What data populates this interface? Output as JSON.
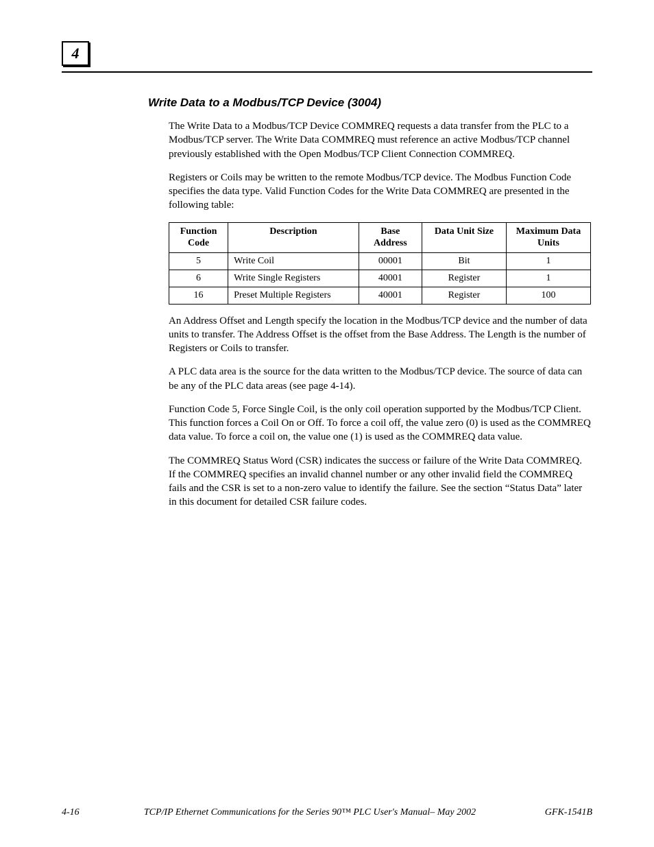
{
  "chapter_number": "4",
  "heading": "Write Data to a Modbus/TCP Device (3004)",
  "paragraphs_before_table": [
    "The Write Data to a Modbus/TCP Device COMMREQ requests a data transfer from the PLC to a Modbus/TCP server. The Write Data COMMREQ must reference an active Modbus/TCP channel previously established with the Open Modbus/TCP Client Connection COMMREQ.",
    "Registers or Coils may be written to the remote Modbus/TCP device. The Modbus Function Code specifies the data type. Valid Function Codes for the Write Data COMMREQ are presented in the following table:"
  ],
  "table": {
    "columns": [
      "Function Code",
      "Description",
      "Base Address",
      "Data Unit Size",
      "Maximum Data Units"
    ],
    "col_widths_pct": [
      14,
      31,
      15,
      20,
      20
    ],
    "col_align": [
      "c",
      "l",
      "c",
      "c",
      "c"
    ],
    "rows": [
      [
        "5",
        "Write Coil",
        "00001",
        "Bit",
        "1"
      ],
      [
        "6",
        "Write Single Registers",
        "40001",
        "Register",
        "1"
      ],
      [
        "16",
        "Preset Multiple Registers",
        "40001",
        "Register",
        "100"
      ]
    ]
  },
  "paragraphs_after_table": [
    "An Address Offset and Length specify the location in the Modbus/TCP device and the number of data units to transfer. The Address Offset is the offset from the Base Address. The Length is the number of Registers or Coils to transfer.",
    "A PLC data area is the source for the data written to the Modbus/TCP device. The source of data can be any of the PLC data areas (see page 4-14).",
    "Function Code 5, Force Single Coil, is the only coil operation supported by the Modbus/TCP Client. This function forces a Coil On or Off. To force a coil off, the value zero (0) is used as the COMMREQ data value. To force a coil on, the value one (1) is used as the COMMREQ data value.",
    "The COMMREQ Status Word (CSR) indicates the success or failure of the Write Data COMMREQ. If the COMMREQ specifies an invalid channel number or any other invalid field the COMMREQ fails and the CSR is set to a non-zero value to identify the failure. See the section “Status Data” later in this document for detailed CSR failure codes."
  ],
  "footer": {
    "page": "4-16",
    "title": "TCP/IP Ethernet Communications for the Series 90™ PLC User's Manual– May 2002",
    "doc": "GFK-1541B"
  }
}
